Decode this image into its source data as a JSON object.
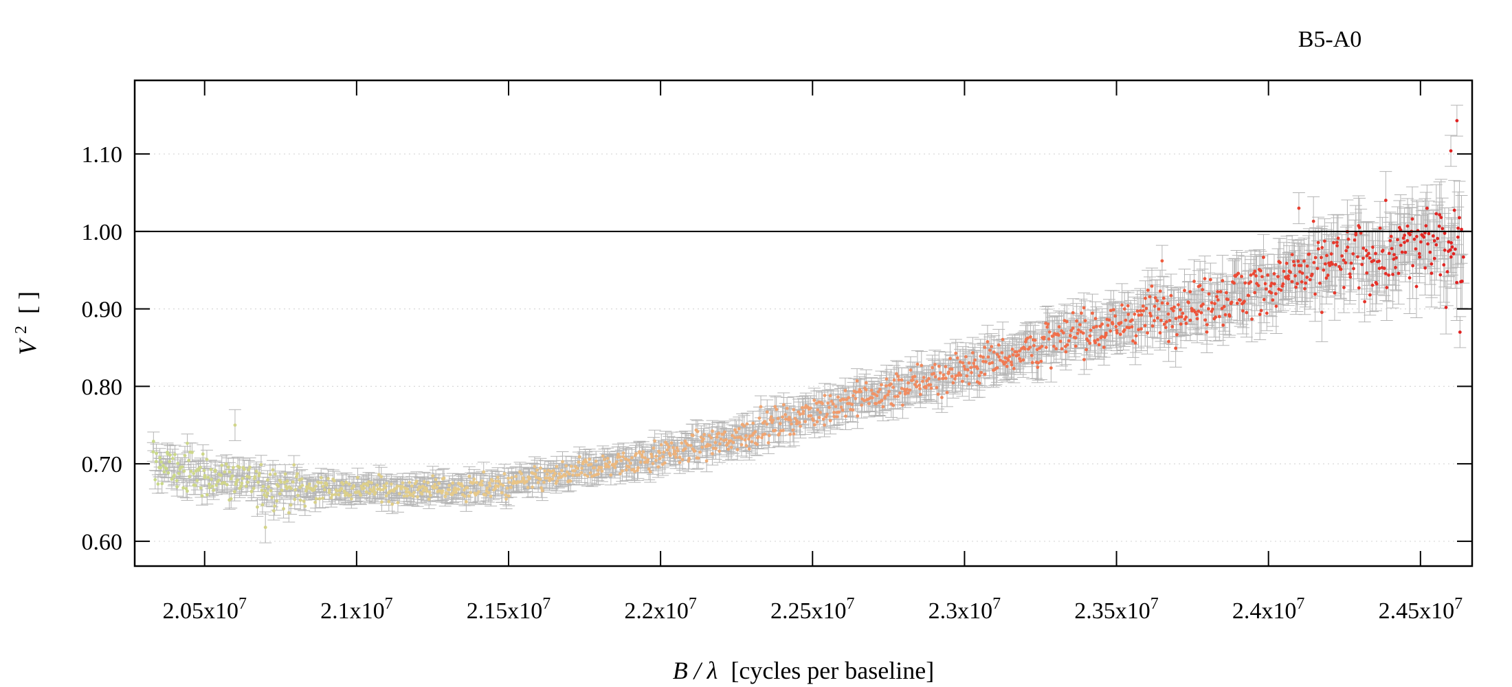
{
  "chart_data": {
    "type": "scatter",
    "title": "B5-A0",
    "xlabel": {
      "var": "B / λ",
      "unit": "[cycles per baseline]"
    },
    "ylabel": {
      "var": "V",
      "sup": "2",
      "unit": "[ ]"
    },
    "xlim": [
      20270000,
      24670000
    ],
    "ylim": [
      0.568,
      1.195
    ],
    "xticks": [
      20500000,
      21000000,
      21500000,
      22000000,
      22500000,
      23000000,
      23500000,
      24000000,
      24500000
    ],
    "xtick_labels": [
      {
        "mant": "2.05x10",
        "exp": "7"
      },
      {
        "mant": "2.1x10",
        "exp": "7"
      },
      {
        "mant": "2.15x10",
        "exp": "7"
      },
      {
        "mant": "2.2x10",
        "exp": "7"
      },
      {
        "mant": "2.25x10",
        "exp": "7"
      },
      {
        "mant": "2.3x10",
        "exp": "7"
      },
      {
        "mant": "2.35x10",
        "exp": "7"
      },
      {
        "mant": "2.4x10",
        "exp": "7"
      },
      {
        "mant": "2.45x10",
        "exp": "7"
      }
    ],
    "yticks": [
      0.6,
      0.7,
      0.8,
      0.9,
      1.0,
      1.1
    ],
    "ytick_labels": [
      "0.60",
      "0.70",
      "0.80",
      "0.90",
      "1.00",
      "1.10"
    ],
    "reference_line": 1.0,
    "grid": "horizontal dotted",
    "colors": {
      "errorbar": "#b4b4b4",
      "grid": "#d8d8d8",
      "reference": "#000000",
      "point_gradient": [
        "#c9d98a",
        "#e8c98a",
        "#f0a070",
        "#f06040",
        "#e02020"
      ]
    },
    "series": [
      {
        "x_start": 20330000,
        "x_end": 24640000,
        "n_points": 1400,
        "error_typical": 0.012,
        "error_at_high_x": 0.04,
        "trend": [
          [
            20330000,
            0.7
          ],
          [
            20500000,
            0.685
          ],
          [
            20800000,
            0.668
          ],
          [
            21000000,
            0.667
          ],
          [
            21300000,
            0.668
          ],
          [
            21500000,
            0.672
          ],
          [
            21700000,
            0.688
          ],
          [
            22000000,
            0.712
          ],
          [
            22200000,
            0.728
          ],
          [
            22400000,
            0.755
          ],
          [
            22600000,
            0.778
          ],
          [
            22800000,
            0.798
          ],
          [
            23000000,
            0.825
          ],
          [
            23200000,
            0.848
          ],
          [
            23400000,
            0.87
          ],
          [
            23600000,
            0.892
          ],
          [
            23800000,
            0.91
          ],
          [
            24000000,
            0.93
          ],
          [
            24200000,
            0.955
          ],
          [
            24400000,
            0.97
          ],
          [
            24640000,
            0.99
          ]
        ],
        "notable_points": [
          [
            24620000,
            1.143
          ],
          [
            24600000,
            1.104
          ],
          [
            24100000,
            1.03
          ],
          [
            23650000,
            0.962
          ],
          [
            20600000,
            0.75
          ],
          [
            20700000,
            0.618
          ],
          [
            24630000,
            0.87
          ]
        ]
      }
    ]
  }
}
